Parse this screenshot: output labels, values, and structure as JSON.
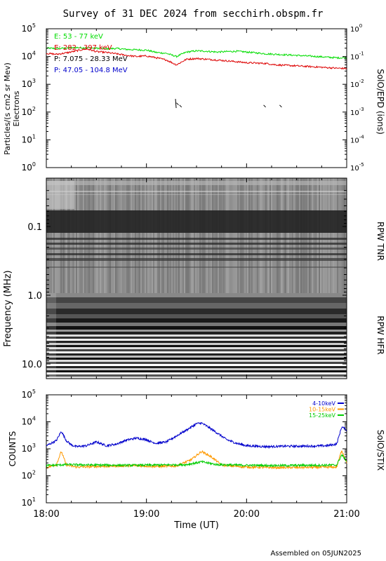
{
  "title": "Survey of 31 DEC 2024 from secchirh.obspm.fr",
  "footer": "Assembled on 05JUN2025",
  "x_axis": {
    "label": "Time (UT)",
    "ticks": [
      "18:00",
      "19:00",
      "20:00",
      "21:00"
    ]
  },
  "panels": {
    "epd": {
      "ylabel_left": "Particles/(s cm2 sr Mev)",
      "ylabel_left2": "Electrons",
      "ylabel_right": "SolO/EPD (ions)",
      "left_ticks": [
        {
          "base": "10",
          "exp": "0"
        },
        {
          "base": "10",
          "exp": "1"
        },
        {
          "base": "10",
          "exp": "2"
        },
        {
          "base": "10",
          "exp": "3"
        },
        {
          "base": "10",
          "exp": "4"
        },
        {
          "base": "10",
          "exp": "5"
        }
      ],
      "right_ticks": [
        {
          "base": "10",
          "exp": "-5"
        },
        {
          "base": "10",
          "exp": "-4"
        },
        {
          "base": "10",
          "exp": "-3"
        },
        {
          "base": "10",
          "exp": "-2"
        },
        {
          "base": "10",
          "exp": "-1"
        },
        {
          "base": "10",
          "exp": "0"
        }
      ],
      "legend": [
        {
          "text": "E: 53 - 77 keV",
          "color": "#00dd00"
        },
        {
          "text": "E: 282 - 397 keV",
          "color": "#dd0000"
        },
        {
          "text": "P: 7.075 - 28.33 MeV",
          "color": "#000000"
        },
        {
          "text": "P: 47.05 - 104.8 MeV",
          "color": "#0000cc"
        }
      ]
    },
    "rpw": {
      "ylabel": "Frequency (MHz)",
      "label_tnr": "RPW TNR",
      "label_hfr": "RPW HFR",
      "ticks": [
        "0.1",
        "1.0",
        "10.0"
      ]
    },
    "stix": {
      "ylabel_left": "COUNTS",
      "ylabel_right": "SolO/STIX",
      "ticks": [
        {
          "base": "10",
          "exp": "1"
        },
        {
          "base": "10",
          "exp": "2"
        },
        {
          "base": "10",
          "exp": "3"
        },
        {
          "base": "10",
          "exp": "4"
        },
        {
          "base": "10",
          "exp": "5"
        }
      ],
      "legend": [
        {
          "text": "4-10keV",
          "color": "#0000cc"
        },
        {
          "text": "10-15keV",
          "color": "#ff9900"
        },
        {
          "text": "15-25keV",
          "color": "#00cc00"
        }
      ]
    }
  },
  "chart_data": [
    {
      "type": "line",
      "panel": "SolO/EPD",
      "x_unit": "hours UT (31 DEC 2024)",
      "xlim": [
        18,
        21
      ],
      "y_scale": "log",
      "ylim": [
        1,
        100000
      ],
      "grid": false,
      "legend_position": "top-left",
      "series": [
        {
          "name": "E: 53 - 77 keV",
          "color": "#00dd00",
          "x": [
            18.0,
            18.1,
            18.2,
            18.3,
            18.4,
            18.5,
            18.6,
            18.7,
            18.8,
            18.9,
            19.0,
            19.1,
            19.2,
            19.3,
            19.4,
            19.5,
            19.6,
            19.7,
            19.8,
            19.9,
            20.0,
            20.1,
            20.2,
            20.3,
            20.4,
            20.5,
            20.6,
            20.7,
            20.8,
            20.9,
            21.0
          ],
          "y": [
            20000,
            19500,
            20000,
            21000,
            20500,
            20000,
            19000,
            19500,
            18000,
            17500,
            17000,
            14000,
            13000,
            10000,
            14500,
            16000,
            15500,
            14500,
            15000,
            15500,
            14500,
            13500,
            12500,
            12000,
            11500,
            11000,
            10500,
            10000,
            9500,
            9000,
            9000
          ]
        },
        {
          "name": "E: 282 - 397 keV",
          "color": "#dd0000",
          "x": [
            18.0,
            18.1,
            18.2,
            18.3,
            18.4,
            18.5,
            18.6,
            18.7,
            18.8,
            18.9,
            19.0,
            19.1,
            19.2,
            19.3,
            19.4,
            19.5,
            19.6,
            19.7,
            19.8,
            19.9,
            20.0,
            20.1,
            20.2,
            20.3,
            20.4,
            20.5,
            20.6,
            20.7,
            20.8,
            20.9,
            21.0
          ],
          "y": [
            13000,
            12000,
            13500,
            16000,
            19000,
            15000,
            14000,
            12500,
            11000,
            10000,
            10500,
            9000,
            7500,
            5000,
            8000,
            8500,
            8000,
            7500,
            7000,
            6500,
            6000,
            5800,
            5600,
            5000,
            4800,
            4600,
            4400,
            4200,
            4000,
            3800,
            3700
          ]
        },
        {
          "name": "P: 7.075 - 28.33 MeV",
          "color": "#000000",
          "x": [
            19.29,
            19.3,
            19.33,
            20.17,
            20.33
          ],
          "y": [
            250,
            180,
            150,
            150,
            150
          ]
        },
        {
          "name": "P: 47.05 - 104.8 MeV",
          "color": "#0000cc",
          "x": [],
          "y": []
        }
      ]
    },
    {
      "type": "heatmap",
      "panel": "RPW TNR / RPW HFR",
      "x_unit": "hours UT (31 DEC 2024)",
      "xlim": [
        18,
        21
      ],
      "y_scale": "log",
      "y_unit": "MHz",
      "ylim": [
        0.02,
        16
      ],
      "y_inverted": true,
      "colormap": "grayscale",
      "bands": [
        {
          "label": "RPW TNR",
          "freq_range": [
            0.02,
            1.0
          ]
        },
        {
          "label": "RPW HFR",
          "freq_range": [
            1.0,
            16
          ]
        }
      ]
    },
    {
      "type": "line",
      "panel": "SolO/STIX",
      "x_unit": "hours UT (31 DEC 2024)",
      "xlim": [
        18,
        21
      ],
      "y_scale": "log",
      "ylim": [
        10,
        100000
      ],
      "grid": false,
      "legend_position": "top-right",
      "series": [
        {
          "name": "4-10keV",
          "color": "#0000cc",
          "x": [
            18.0,
            18.1,
            18.15,
            18.2,
            18.25,
            18.3,
            18.4,
            18.5,
            18.6,
            18.7,
            18.8,
            18.9,
            19.0,
            19.05,
            19.1,
            19.2,
            19.3,
            19.4,
            19.5,
            19.55,
            19.6,
            19.7,
            19.8,
            19.9,
            20.0,
            20.2,
            20.4,
            20.6,
            20.8,
            20.9,
            20.95,
            21.0
          ],
          "y": [
            1300,
            2000,
            4500,
            2000,
            1400,
            1200,
            1300,
            1800,
            1300,
            1500,
            2100,
            2500,
            2200,
            1800,
            1600,
            1800,
            3000,
            5000,
            8500,
            9000,
            7000,
            4000,
            2200,
            1600,
            1300,
            1200,
            1250,
            1250,
            1300,
            1500,
            6500,
            5000
          ]
        },
        {
          "name": "10-15keV",
          "color": "#ff9900",
          "x": [
            18.0,
            18.1,
            18.15,
            18.2,
            18.3,
            18.5,
            18.7,
            18.9,
            19.1,
            19.3,
            19.45,
            19.55,
            19.65,
            19.75,
            20.0,
            20.3,
            20.6,
            20.9,
            20.95,
            21.0
          ],
          "y": [
            200,
            260,
            800,
            250,
            210,
            220,
            230,
            240,
            220,
            230,
            400,
            800,
            500,
            250,
            210,
            200,
            205,
            210,
            900,
            300
          ]
        },
        {
          "name": "15-25keV",
          "color": "#00cc00",
          "x": [
            18.0,
            18.2,
            18.5,
            18.8,
            19.1,
            19.4,
            19.55,
            19.7,
            20.0,
            20.3,
            20.6,
            20.9,
            20.95,
            21.0
          ],
          "y": [
            240,
            260,
            250,
            245,
            250,
            260,
            330,
            260,
            245,
            240,
            245,
            250,
            600,
            350
          ]
        }
      ]
    }
  ]
}
